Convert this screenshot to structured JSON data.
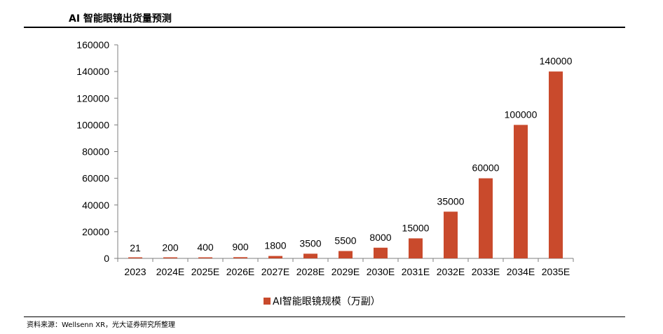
{
  "header": {
    "title": "AI 智能眼镜出货量预测"
  },
  "footer": {
    "source": "资料来源：Wellsenn XR，光大证券研究所整理"
  },
  "colors": {
    "bar": "#C94A2C",
    "axis": "#7f7f7f"
  },
  "chart_data": {
    "type": "bar",
    "title": "AI 智能眼镜出货量预测",
    "categories": [
      "2023",
      "2024E",
      "2025E",
      "2026E",
      "2027E",
      "2028E",
      "2029E",
      "2030E",
      "2031E",
      "2032E",
      "2033E",
      "2034E",
      "2035E"
    ],
    "series": [
      {
        "name": "AI智能眼镜规模（万副）",
        "values": [
          21,
          200,
          400,
          900,
          1800,
          3500,
          5500,
          8000,
          15000,
          35000,
          60000,
          100000,
          140000
        ]
      }
    ],
    "ylim": [
      0,
      160000
    ],
    "yticks": [
      0,
      20000,
      40000,
      60000,
      80000,
      100000,
      120000,
      140000,
      160000
    ],
    "grid": false,
    "legend": "bottom"
  }
}
